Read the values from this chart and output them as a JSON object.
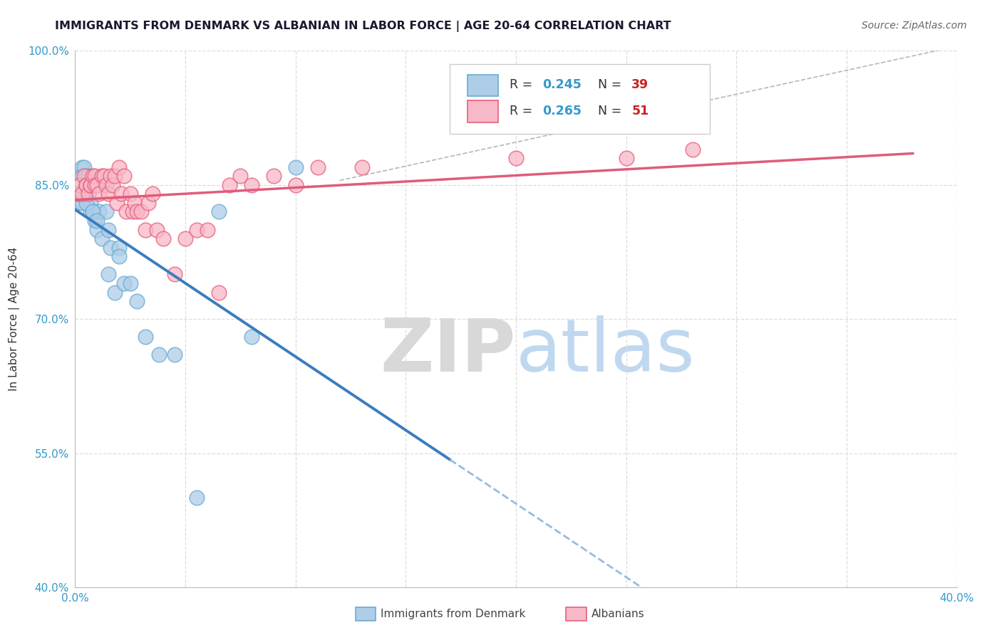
{
  "title": "IMMIGRANTS FROM DENMARK VS ALBANIAN IN LABOR FORCE | AGE 20-64 CORRELATION CHART",
  "source": "Source: ZipAtlas.com",
  "ylabel_label": "In Labor Force | Age 20-64",
  "xlim": [
    0.0,
    0.4
  ],
  "ylim": [
    0.4,
    1.0
  ],
  "xticks": [
    0.0,
    0.05,
    0.1,
    0.15,
    0.2,
    0.25,
    0.3,
    0.35,
    0.4
  ],
  "yticks": [
    0.4,
    0.55,
    0.7,
    0.85,
    1.0
  ],
  "yticklabels": [
    "40.0%",
    "55.0%",
    "70.0%",
    "85.0%",
    "100.0%"
  ],
  "denmark_R": 0.245,
  "denmark_N": 39,
  "albanian_R": 0.265,
  "albanian_N": 51,
  "denmark_scatter_color": "#aecde8",
  "denmark_edge_color": "#6aabd2",
  "denmark_line_color": "#3a7dbf",
  "albanian_scatter_color": "#f7b8c8",
  "albanian_edge_color": "#e8607a",
  "albanian_line_color": "#e05c7a",
  "grid_color": "#dddddd",
  "legend_label_denmark": "Immigrants from Denmark",
  "legend_label_albanian": "Albanians",
  "denmark_x": [
    0.001,
    0.002,
    0.003,
    0.003,
    0.004,
    0.005,
    0.005,
    0.006,
    0.006,
    0.007,
    0.007,
    0.008,
    0.009,
    0.01,
    0.011,
    0.012,
    0.014,
    0.015,
    0.016,
    0.018,
    0.02,
    0.022,
    0.025,
    0.028,
    0.032,
    0.038,
    0.045,
    0.055,
    0.065,
    0.08,
    0.1,
    0.003,
    0.004,
    0.005,
    0.006,
    0.008,
    0.01,
    0.015,
    0.02
  ],
  "denmark_y": [
    0.83,
    0.84,
    0.87,
    0.86,
    0.87,
    0.86,
    0.85,
    0.84,
    0.86,
    0.82,
    0.83,
    0.82,
    0.81,
    0.8,
    0.82,
    0.79,
    0.82,
    0.75,
    0.78,
    0.73,
    0.78,
    0.74,
    0.74,
    0.72,
    0.68,
    0.66,
    0.66,
    0.5,
    0.82,
    0.68,
    0.87,
    0.83,
    0.84,
    0.83,
    0.85,
    0.82,
    0.81,
    0.8,
    0.77
  ],
  "albanian_x": [
    0.001,
    0.002,
    0.003,
    0.004,
    0.005,
    0.005,
    0.006,
    0.007,
    0.007,
    0.008,
    0.009,
    0.009,
    0.01,
    0.011,
    0.012,
    0.013,
    0.014,
    0.015,
    0.016,
    0.017,
    0.018,
    0.019,
    0.02,
    0.021,
    0.022,
    0.023,
    0.025,
    0.026,
    0.027,
    0.028,
    0.03,
    0.032,
    0.033,
    0.035,
    0.037,
    0.04,
    0.045,
    0.05,
    0.055,
    0.06,
    0.065,
    0.07,
    0.075,
    0.08,
    0.09,
    0.1,
    0.11,
    0.13,
    0.2,
    0.25,
    0.28
  ],
  "albanian_y": [
    0.84,
    0.85,
    0.84,
    0.86,
    0.85,
    0.85,
    0.84,
    0.85,
    0.85,
    0.86,
    0.86,
    0.85,
    0.85,
    0.84,
    0.86,
    0.86,
    0.85,
    0.84,
    0.86,
    0.85,
    0.86,
    0.83,
    0.87,
    0.84,
    0.86,
    0.82,
    0.84,
    0.82,
    0.83,
    0.82,
    0.82,
    0.8,
    0.83,
    0.84,
    0.8,
    0.79,
    0.75,
    0.79,
    0.8,
    0.8,
    0.73,
    0.85,
    0.86,
    0.85,
    0.86,
    0.85,
    0.87,
    0.87,
    0.88,
    0.88,
    0.89
  ]
}
